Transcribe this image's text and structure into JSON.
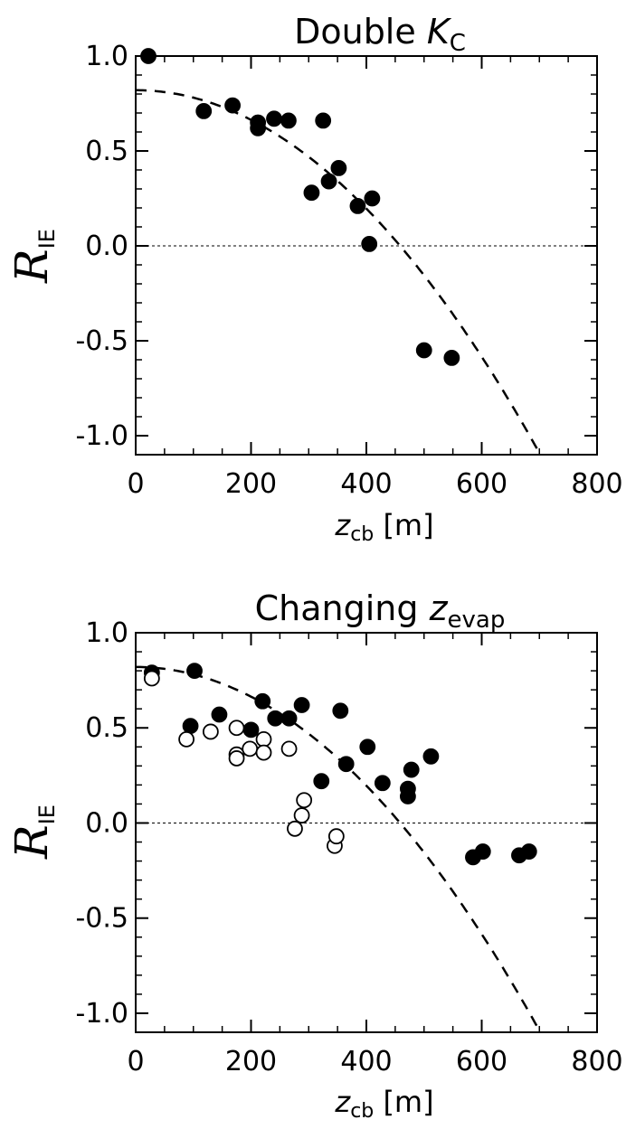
{
  "chart_data": [
    {
      "type": "scatter",
      "title": "Double K",
      "title_subscript": "C",
      "title_emphasis": "K",
      "xlabel": "z",
      "xlabel_subscript": "cb",
      "xlabel_unit": "[m]",
      "ylabel": "R",
      "ylabel_subscript": "IE",
      "xlim": [
        0,
        800
      ],
      "ylim": [
        -1.1,
        1.0
      ],
      "xticks": [
        "0",
        "200",
        "400",
        "600",
        "800"
      ],
      "yticks": [
        "1.0",
        "0.5",
        "0.0",
        "-0.5",
        "-1.0"
      ],
      "reference_line": {
        "y": 0.0,
        "style": "dotted"
      },
      "fit_curve": {
        "style": "dashed",
        "a": 0.82,
        "b": 3.9e-06
      },
      "series": [
        {
          "marker": "filled",
          "points": [
            [
              22,
              1.0
            ],
            [
              118,
              0.71
            ],
            [
              168,
              0.74
            ],
            [
              212,
              0.65
            ],
            [
              212,
              0.62
            ],
            [
              240,
              0.67
            ],
            [
              265,
              0.66
            ],
            [
              325,
              0.66
            ],
            [
              305,
              0.28
            ],
            [
              335,
              0.34
            ],
            [
              352,
              0.41
            ],
            [
              385,
              0.21
            ],
            [
              410,
              0.25
            ],
            [
              405,
              0.01
            ],
            [
              500,
              -0.55
            ],
            [
              548,
              -0.59
            ]
          ]
        }
      ]
    },
    {
      "type": "scatter",
      "title": "Changing z",
      "title_subscript": "evap",
      "title_emphasis": "z",
      "xlabel": "z",
      "xlabel_subscript": "cb",
      "xlabel_unit": "[m]",
      "ylabel": "R",
      "ylabel_subscript": "IE",
      "xlim": [
        0,
        800
      ],
      "ylim": [
        -1.1,
        1.0
      ],
      "xticks": [
        "0",
        "200",
        "400",
        "600",
        "800"
      ],
      "yticks": [
        "1.0",
        "0.5",
        "0.0",
        "-0.5",
        "-1.0"
      ],
      "reference_line": {
        "y": 0.0,
        "style": "dotted"
      },
      "fit_curve": {
        "style": "dashed",
        "a": 0.82,
        "b": 3.9e-06
      },
      "series": [
        {
          "marker": "filled",
          "points": [
            [
              28,
              0.79
            ],
            [
              95,
              0.51
            ],
            [
              102,
              0.8
            ],
            [
              145,
              0.57
            ],
            [
              200,
              0.49
            ],
            [
              220,
              0.64
            ],
            [
              242,
              0.55
            ],
            [
              266,
              0.55
            ],
            [
              288,
              0.62
            ],
            [
              322,
              0.22
            ],
            [
              355,
              0.59
            ],
            [
              365,
              0.31
            ],
            [
              402,
              0.4
            ],
            [
              428,
              0.21
            ],
            [
              472,
              0.18
            ],
            [
              472,
              0.14
            ],
            [
              478,
              0.28
            ],
            [
              512,
              0.35
            ],
            [
              585,
              -0.18
            ],
            [
              602,
              -0.15
            ],
            [
              665,
              -0.17
            ],
            [
              682,
              -0.15
            ]
          ]
        },
        {
          "marker": "open",
          "points": [
            [
              28,
              0.76
            ],
            [
              88,
              0.44
            ],
            [
              130,
              0.48
            ],
            [
              175,
              0.5
            ],
            [
              175,
              0.36
            ],
            [
              175,
              0.34
            ],
            [
              198,
              0.39
            ],
            [
              222,
              0.44
            ],
            [
              222,
              0.37
            ],
            [
              266,
              0.39
            ],
            [
              276,
              -0.03
            ],
            [
              288,
              0.04
            ],
            [
              292,
              0.12
            ],
            [
              345,
              -0.12
            ],
            [
              348,
              -0.07
            ]
          ]
        }
      ]
    }
  ]
}
